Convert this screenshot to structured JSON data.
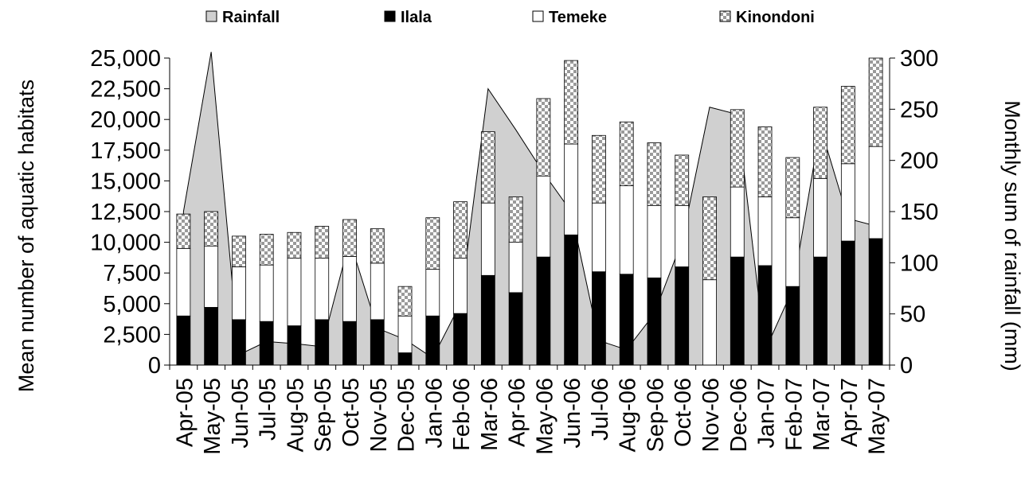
{
  "chart_data": {
    "type": "bar",
    "stacked": true,
    "categories": [
      "Apr-05",
      "May-05",
      "Jun-05",
      "Jul-05",
      "Aug-05",
      "Sep-05",
      "Oct-05",
      "Nov-05",
      "Dec-05",
      "Jan-06",
      "Feb-06",
      "Mar-06",
      "Apr-06",
      "May-06",
      "Jun-06",
      "Jul-06",
      "Aug-06",
      "Sep-06",
      "Oct-06",
      "Nov-06",
      "Dec-06",
      "Jan-07",
      "Feb-07",
      "Mar-07",
      "Apr-07",
      "May-07"
    ],
    "series": [
      {
        "name": "Ilala",
        "values": [
          4000,
          4700,
          3700,
          3550,
          3200,
          3700,
          3550,
          3700,
          1000,
          4000,
          4200,
          7300,
          5900,
          8800,
          10600,
          7600,
          7400,
          7100,
          8000,
          0,
          8800,
          8100,
          6400,
          8800,
          10100,
          10300
        ]
      },
      {
        "name": "Temeke",
        "values": [
          5500,
          5000,
          4300,
          4600,
          5500,
          5000,
          5300,
          4600,
          3000,
          3800,
          4500,
          5900,
          4100,
          6600,
          7400,
          5600,
          7200,
          5900,
          5000,
          6950,
          5700,
          5600,
          5600,
          6400,
          6300,
          7500
        ]
      },
      {
        "name": "Kinondoni",
        "values": [
          2800,
          2800,
          2500,
          2500,
          2100,
          2600,
          3000,
          2800,
          2400,
          4200,
          4600,
          5800,
          3700,
          6300,
          6800,
          5500,
          5200,
          5100,
          4100,
          6750,
          6300,
          5700,
          4900,
          5800,
          6300,
          7200
        ]
      }
    ],
    "rainfall": {
      "name": "Rainfall",
      "values": [
        150,
        306,
        10,
        23,
        21,
        18,
        122,
        36,
        25,
        7,
        60,
        270,
        230,
        188,
        150,
        24,
        15,
        50,
        121,
        252,
        245,
        14,
        74,
        233,
        143,
        136
      ]
    },
    "y_left": {
      "label": "Mean number of aquatic habitats",
      "ylim": [
        0,
        25000
      ],
      "ticks": [
        "0",
        "2,500",
        "5,000",
        "7,500",
        "10,000",
        "12,500",
        "15,000",
        "17,500",
        "20,000",
        "22,500",
        "25,000"
      ]
    },
    "y_right": {
      "label": "Monthly sum of rainfall (mm)",
      "ylim": [
        0,
        300
      ],
      "ticks": [
        "0",
        "50",
        "100",
        "150",
        "200",
        "250",
        "300"
      ]
    },
    "legend": {
      "position": "top",
      "entries": [
        "Rainfall",
        "Ilala",
        "Temeke",
        "Kinondoni"
      ]
    },
    "colors": {
      "rainfall_fill": "#d0d0d0",
      "ilala": "#000000",
      "temeke": "#ffffff",
      "kinondoni_light": "#ffffff",
      "kinondoni_dark": "#9a9a9a"
    },
    "grid": false
  }
}
